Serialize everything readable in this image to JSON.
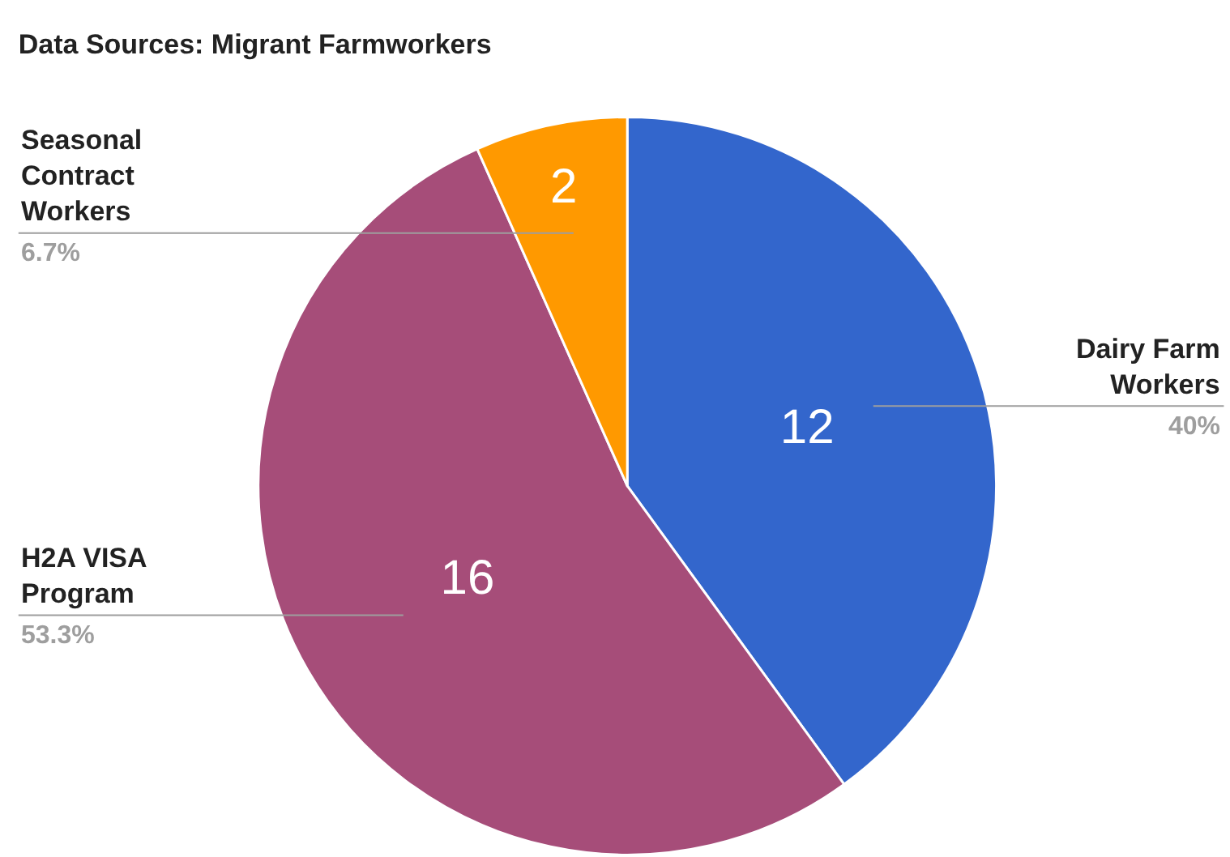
{
  "chart_data": {
    "type": "pie",
    "title": "Data Sources: Migrant Farmworkers",
    "categories": [
      "Dairy Farm Workers",
      "H2A VISA Program",
      "Seasonal Contract Workers"
    ],
    "values": [
      12,
      16,
      2
    ],
    "colors": [
      "#3366cc",
      "#a64d79",
      "#ff9900"
    ],
    "value_labels": [
      "12",
      "16",
      "2"
    ],
    "annotations": [
      "40%",
      "53.3%",
      "6.7%"
    ],
    "legend": false
  }
}
